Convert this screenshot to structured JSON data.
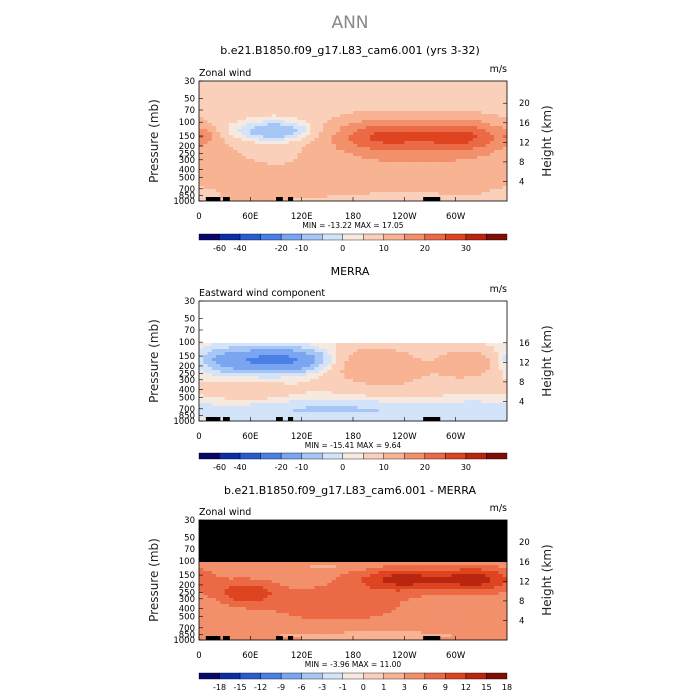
{
  "page_title": "ANN",
  "cb_colors_a": [
    "#08086b",
    "#0b2fa8",
    "#2a5cd0",
    "#4a7fe6",
    "#7aa5f0",
    "#a6c6f5",
    "#d2e3fa",
    "#f6e9e0",
    "#fbd0bb",
    "#f8b393",
    "#f2906b",
    "#eb6a45",
    "#de4420",
    "#b9260f",
    "#7f0f05"
  ],
  "cb_colors_b": [
    "#08086b",
    "#0b2fa8",
    "#2a5cd0",
    "#4a7fe6",
    "#7aa5f0",
    "#a6c6f5",
    "#d2e3fa",
    "#f6e9e0",
    "#fbd0bb",
    "#f8b393",
    "#f2906b",
    "#eb6a45",
    "#de4420",
    "#b9260f",
    "#7f0f05"
  ],
  "chart_data": [
    {
      "type": "heatmap",
      "title": "b.e21.B1850.f09_g17.L83_cam6.001 (yrs 3-32)",
      "left_label": "Zonal wind",
      "units": "m/s",
      "ylabel": "Pressure (mb)",
      "ylabel_right": "Height (km)",
      "pressure_ticks": [
        30,
        50,
        70,
        100,
        150,
        200,
        250,
        300,
        400,
        500,
        700,
        850,
        1000
      ],
      "height_ticks": [
        20,
        16,
        12,
        8,
        4
      ],
      "x_ticks": [
        "0",
        "60E",
        "120E",
        "180",
        "120W",
        "60W"
      ],
      "x_tick_lon": [
        0,
        60,
        120,
        180,
        240,
        300
      ],
      "stats": "MIN = -13.22   MAX =  17.05",
      "min": -13.22,
      "max": 17.05,
      "data_top_mb": 30,
      "colorbar_labels": [
        "-60",
        "-40",
        "-20",
        "-10",
        "0",
        "10",
        "20",
        "30"
      ],
      "blobs": [
        {
          "lon": 90,
          "p": 130,
          "rlon": 38,
          "rp": 0.22,
          "v": -8
        },
        {
          "lon": 65,
          "p": 650,
          "rlon": 30,
          "rp": 0.35,
          "v": 4
        },
        {
          "lon": 170,
          "p": 600,
          "rlon": 80,
          "rp": 0.4,
          "v": 3
        },
        {
          "lon": 215,
          "p": 150,
          "rlon": 45,
          "rp": 0.35,
          "v": 15
        },
        {
          "lon": 310,
          "p": 150,
          "rlon": 35,
          "rp": 0.33,
          "v": 14
        },
        {
          "lon": 270,
          "p": 300,
          "rlon": 100,
          "rp": 0.8,
          "v": 6
        },
        {
          "lon": 230,
          "p": 900,
          "rlon": 45,
          "rp": 0.15,
          "v": -3
        },
        {
          "lon": 5,
          "p": 800,
          "rlon": 12,
          "rp": 0.12,
          "v": -2
        },
        {
          "lon": 5,
          "p": 150,
          "rlon": 10,
          "rp": 0.15,
          "v": 6
        }
      ],
      "base": 2.5
    },
    {
      "type": "heatmap",
      "title": "MERRA",
      "left_label": "Eastward wind component",
      "units": "m/s",
      "ylabel": "Pressure (mb)",
      "ylabel_right": "Height (km)",
      "pressure_ticks": [
        30,
        50,
        70,
        100,
        150,
        200,
        250,
        300,
        400,
        500,
        700,
        850,
        1000
      ],
      "height_ticks": [
        16,
        12,
        8,
        4
      ],
      "x_ticks": [
        "0",
        "60E",
        "120E",
        "180",
        "120W",
        "60W"
      ],
      "x_tick_lon": [
        0,
        60,
        120,
        180,
        240,
        300
      ],
      "stats": "MIN = -15.41   MAX =   9.64",
      "min": -15.41,
      "max": 9.64,
      "data_top_mb": 100,
      "colorbar_labels": [
        "-60",
        "-40",
        "-20",
        "-10",
        "0",
        "10",
        "20",
        "30"
      ],
      "blobs": [
        {
          "lon": 95,
          "p": 170,
          "rlon": 45,
          "rp": 0.25,
          "v": -13
        },
        {
          "lon": 30,
          "p": 170,
          "rlon": 25,
          "rp": 0.25,
          "v": -4
        },
        {
          "lon": 200,
          "p": 180,
          "rlon": 40,
          "rp": 0.35,
          "v": 8
        },
        {
          "lon": 315,
          "p": 180,
          "rlon": 25,
          "rp": 0.3,
          "v": 7
        },
        {
          "lon": 240,
          "p": 350,
          "rlon": 70,
          "rp": 0.5,
          "v": 3
        },
        {
          "lon": 200,
          "p": 700,
          "rlon": 160,
          "rp": 0.25,
          "v": -4
        },
        {
          "lon": 60,
          "p": 450,
          "rlon": 40,
          "rp": 0.25,
          "v": 3
        }
      ],
      "base": 1.0
    },
    {
      "type": "heatmap",
      "title": "b.e21.B1850.f09_g17.L83_cam6.001 - MERRA",
      "left_label": "Zonal wind",
      "units": "m/s",
      "ylabel": "Pressure (mb)",
      "ylabel_right": "Height (km)",
      "pressure_ticks": [
        30,
        50,
        70,
        100,
        150,
        200,
        250,
        300,
        400,
        500,
        700,
        850,
        1000
      ],
      "height_ticks": [
        20,
        16,
        12,
        8,
        4
      ],
      "x_ticks": [
        "0",
        "60E",
        "120E",
        "180",
        "120W",
        "60W"
      ],
      "x_tick_lon": [
        0,
        60,
        120,
        180,
        240,
        300
      ],
      "stats": "MIN =  -3.96   MAX =  11.00",
      "min": -3.96,
      "max": 11.0,
      "data_top_mb": 100,
      "nodata_fill": "#000000",
      "colorbar_labels": [
        "-18",
        "-15",
        "-12",
        "-9",
        "-6",
        "-3",
        "-1",
        "0",
        "1",
        "3",
        "6",
        "9",
        "12",
        "15",
        "18"
      ],
      "blobs": [
        {
          "lon": 240,
          "p": 170,
          "rlon": 40,
          "rp": 0.25,
          "v": 9
        },
        {
          "lon": 325,
          "p": 170,
          "rlon": 30,
          "rp": 0.25,
          "v": 9
        },
        {
          "lon": 55,
          "p": 250,
          "rlon": 25,
          "rp": 0.25,
          "v": 7
        },
        {
          "lon": 160,
          "p": 350,
          "rlon": 60,
          "rp": 0.4,
          "v": 4
        },
        {
          "lon": 190,
          "p": 880,
          "rlon": 90,
          "rp": 0.12,
          "v": -2
        },
        {
          "lon": 160,
          "p": 115,
          "rlon": 40,
          "rp": 0.08,
          "v": -1.5
        },
        {
          "lon": 30,
          "p": 430,
          "rlon": 10,
          "rp": 0.1,
          "v": -0.5
        }
      ],
      "base": 4.0
    }
  ]
}
